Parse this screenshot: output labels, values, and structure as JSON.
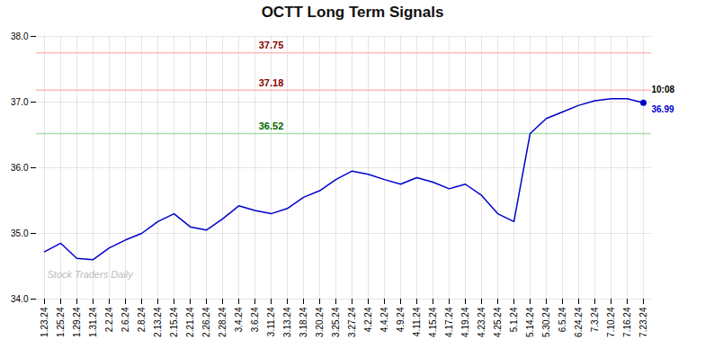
{
  "chart_data": {
    "type": "line",
    "title": "OCTT Long Term Signals",
    "categories": [
      "1.23.24",
      "1.25.24",
      "1.29.24",
      "1.31.24",
      "2.2.24",
      "2.6.24",
      "2.8.24",
      "2.13.24",
      "2.15.24",
      "2.21.24",
      "2.26.24",
      "2.28.24",
      "3.4.24",
      "3.6.24",
      "3.11.24",
      "3.13.24",
      "3.18.24",
      "3.20.24",
      "3.25.24",
      "3.27.24",
      "4.2.24",
      "4.4.24",
      "4.9.24",
      "4.11.24",
      "4.15.24",
      "4.17.24",
      "4.19.24",
      "4.23.24",
      "4.25.24",
      "5.1.24",
      "5.14.24",
      "5.30.24",
      "6.5.24",
      "6.24.24",
      "7.3.24",
      "7.10.24",
      "7.16.24",
      "7.23.24"
    ],
    "values": [
      34.72,
      34.85,
      34.62,
      34.6,
      34.78,
      34.9,
      35.0,
      35.18,
      35.3,
      35.1,
      35.05,
      35.22,
      35.42,
      35.35,
      35.3,
      35.38,
      35.55,
      35.65,
      35.82,
      35.95,
      35.9,
      35.82,
      35.75,
      35.85,
      35.78,
      35.68,
      35.75,
      35.58,
      35.3,
      35.18,
      36.52,
      36.75,
      36.85,
      36.95,
      37.02,
      37.05,
      37.05,
      36.99
    ],
    "color": "#0000cc",
    "reference_lines": [
      {
        "value": 37.75,
        "label": "37.75",
        "color": "#ffbbbb",
        "label_color": "#880000"
      },
      {
        "value": 37.18,
        "label": "37.18",
        "color": "#ffbbbb",
        "label_color": "#880000"
      },
      {
        "value": 36.52,
        "label": "36.52",
        "color": "#aaddaa",
        "label_color": "#006600"
      }
    ],
    "annotations": [
      {
        "text": "10:08",
        "color": "#000000"
      },
      {
        "text": "36.99",
        "value": 36.99,
        "color": "#0000cc"
      }
    ],
    "watermark": "Stock Traders Daily",
    "ylim": [
      34,
      38
    ],
    "yticks": [
      34,
      35,
      36,
      37,
      38
    ],
    "grid": true
  }
}
